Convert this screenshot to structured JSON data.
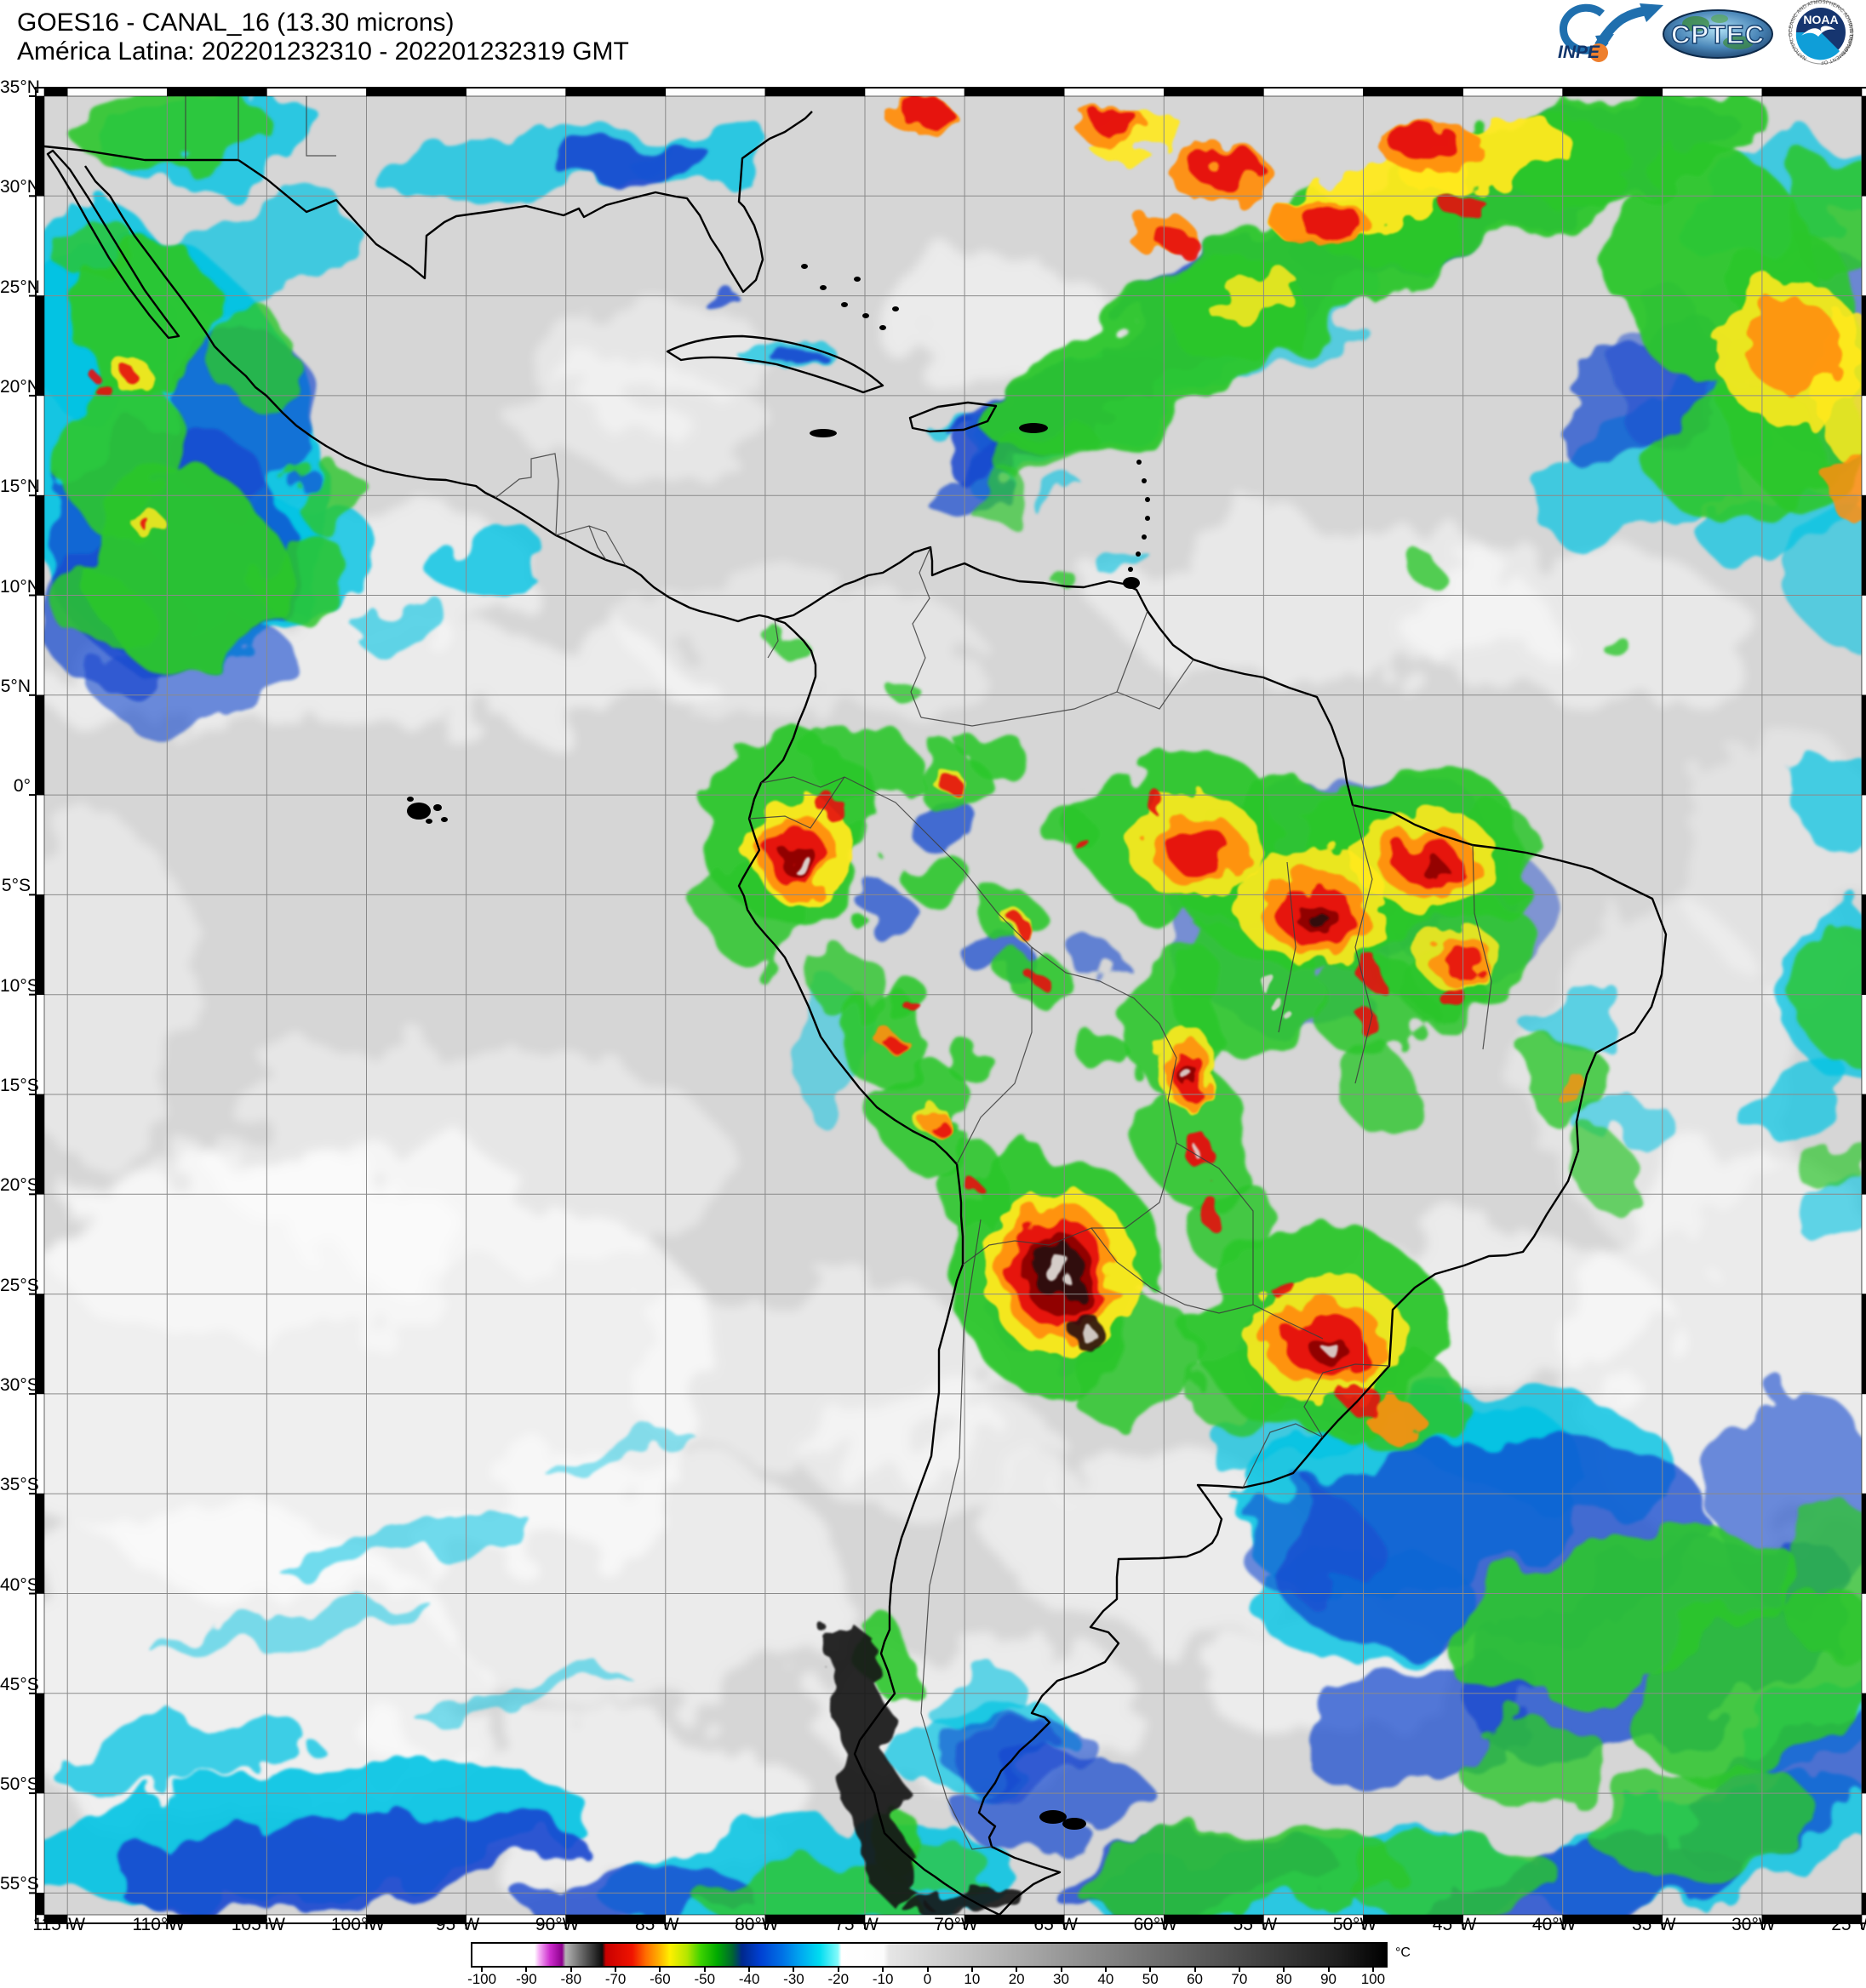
{
  "header": {
    "title": "GOES16 - CANAL_16 (13.30 microns)",
    "subtitle": "América Latina: 202201232310 - 202201232319 GMT"
  },
  "logos": {
    "inpe": {
      "label": "INPE"
    },
    "cptec": {
      "label": "CPTEC"
    },
    "noaa": {
      "label": "NOAA",
      "ring_top": "NATIONAL OCEANIC AND ATMOSPHERIC ADMINISTRATION",
      "ring_bottom": "U.S. DEPARTMENT OF COMMERCE"
    }
  },
  "map": {
    "lat_labels": [
      "35°N",
      "30°N",
      "25°N",
      "20°N",
      "15°N",
      "10°N",
      "5°N",
      "0°",
      "5°S",
      "10°S",
      "15°S",
      "20°S",
      "25°S",
      "30°S",
      "35°S",
      "40°S",
      "45°S",
      "50°S",
      "55°S"
    ],
    "lon_labels": [
      "115°W",
      "110°W",
      "105°W",
      "100°W",
      "95°W",
      "90°W",
      "85°W",
      "80°W",
      "75°W",
      "70°W",
      "65°W",
      "60°W",
      "55°W",
      "50°W",
      "45°W",
      "40°W",
      "35°W",
      "30°W",
      "25°W"
    ]
  },
  "colorbar": {
    "unit": "°C",
    "ticks": [
      -100,
      -90,
      -80,
      -70,
      -60,
      -50,
      -40,
      -30,
      -20,
      -10,
      0,
      10,
      20,
      30,
      40,
      50,
      60,
      70,
      80,
      90,
      100
    ],
    "range": [
      -102.5,
      102.5
    ],
    "stops": [
      [
        0,
        "#ffffff"
      ],
      [
        0.068,
        "#ffffff"
      ],
      [
        0.073,
        "#f6b0f6"
      ],
      [
        0.085,
        "#cc2ccc"
      ],
      [
        0.098,
        "#8c008c"
      ],
      [
        0.102,
        "#b4b4b4"
      ],
      [
        0.118,
        "#6e6e6e"
      ],
      [
        0.142,
        "#0c0c0c"
      ],
      [
        0.146,
        "#c80000"
      ],
      [
        0.175,
        "#f01400"
      ],
      [
        0.19,
        "#ff6e00"
      ],
      [
        0.205,
        "#ffb400"
      ],
      [
        0.216,
        "#fff000"
      ],
      [
        0.235,
        "#b4e600"
      ],
      [
        0.25,
        "#3cd200"
      ],
      [
        0.268,
        "#00aa00"
      ],
      [
        0.285,
        "#006432"
      ],
      [
        0.295,
        "#00288c"
      ],
      [
        0.315,
        "#0040d2"
      ],
      [
        0.34,
        "#0073e6"
      ],
      [
        0.36,
        "#00aaf0"
      ],
      [
        0.38,
        "#00dcf0"
      ],
      [
        0.4,
        "#82fafa"
      ],
      [
        0.404,
        "#ffffff"
      ],
      [
        0.45,
        "#fcfcfc"
      ],
      [
        0.456,
        "#e6e6e6"
      ],
      [
        0.55,
        "#c0c0c0"
      ],
      [
        0.65,
        "#969696"
      ],
      [
        0.75,
        "#6e6e6e"
      ],
      [
        0.85,
        "#464646"
      ],
      [
        0.95,
        "#1e1e1e"
      ],
      [
        1,
        "#000000"
      ]
    ]
  },
  "colors": {
    "map_background": "#d6d6d6",
    "gridline": "#8a8a8a",
    "coastline": "#000000",
    "cloud_cyan": "#00c3e3",
    "cloud_blue": "#1547cf",
    "cloud_green": "#2cc62c",
    "cloud_yellow": "#ffe91e",
    "cloud_orange": "#ff8e0a",
    "cloud_red": "#e51212",
    "cloud_darkred": "#8c0000",
    "overshoot_core": "#ded8d4"
  }
}
